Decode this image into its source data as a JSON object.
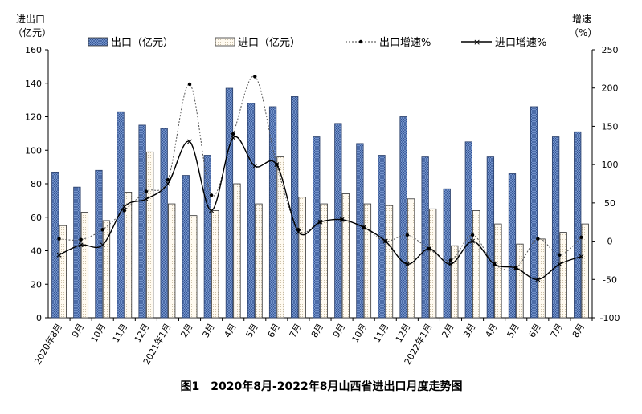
{
  "chart_data": {
    "type": "bar",
    "title": "图1　2020年8月-2022年8月山西省进出口月度走势图",
    "categories": [
      "2020年8月",
      "9月",
      "10月",
      "11月",
      "12月",
      "2021年1月",
      "2月",
      "3月",
      "4月",
      "5月",
      "6月",
      "7月",
      "8月",
      "9月",
      "10月",
      "11月",
      "12月",
      "2022年1月",
      "2月",
      "3月",
      "4月",
      "5月",
      "6月",
      "7月",
      "8月"
    ],
    "ylabel_left": "进出口\n（亿元）",
    "ylabel_left_line1": "进出口",
    "ylabel_left_line2": "（亿元）",
    "ylabel_right_line1": "增速",
    "ylabel_right_line2": "（%）",
    "ylim_left": [
      0,
      160
    ],
    "ylim_right": [
      -100,
      250
    ],
    "yticks_left": [
      0,
      20,
      40,
      60,
      80,
      100,
      120,
      140,
      160
    ],
    "yticks_right": [
      -100,
      -50,
      0,
      50,
      100,
      150,
      200,
      250
    ],
    "legend": [
      "出口（亿元）",
      "进口（亿元）",
      "出口增速%",
      "进口增速%"
    ],
    "series": [
      {
        "name": "出口（亿元）",
        "kind": "bar",
        "axis": "left",
        "color": "#6f8fc8",
        "values": [
          87,
          78,
          88,
          123,
          115,
          113,
          85,
          97,
          137,
          128,
          126,
          132,
          108,
          116,
          104,
          97,
          120,
          96,
          77,
          105,
          96,
          86,
          126,
          108,
          111
        ]
      },
      {
        "name": "进口（亿元）",
        "kind": "bar",
        "axis": "left",
        "color": "#fdf6e6",
        "values": [
          55,
          63,
          58,
          75,
          99,
          68,
          61,
          64,
          80,
          68,
          96,
          72,
          68,
          74,
          68,
          67,
          71,
          65,
          43,
          64,
          56,
          44,
          47,
          51,
          56
        ]
      },
      {
        "name": "出口增速%",
        "kind": "line",
        "axis": "right",
        "color": "#333333",
        "values": [
          3,
          2,
          15,
          40,
          65,
          80,
          205,
          60,
          140,
          215,
          100,
          15,
          25,
          28,
          18,
          0,
          8,
          -10,
          -25,
          8,
          -30,
          -35,
          3,
          -18,
          5
        ]
      },
      {
        "name": "进口增速%",
        "kind": "line",
        "axis": "right",
        "color": "#000000",
        "values": [
          -18,
          -5,
          -5,
          45,
          55,
          75,
          130,
          40,
          135,
          98,
          100,
          12,
          25,
          28,
          18,
          0,
          -30,
          -10,
          -30,
          0,
          -30,
          -35,
          -50,
          -30,
          -20
        ]
      }
    ]
  }
}
